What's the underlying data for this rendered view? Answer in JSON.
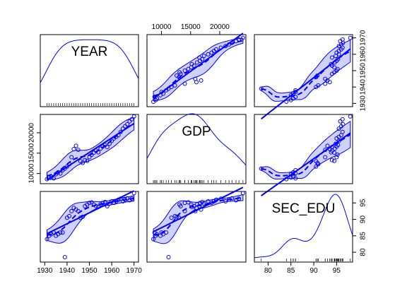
{
  "chart_data": {
    "type": "scatter",
    "variables": [
      "YEAR",
      "GDP",
      "SEC_EDU"
    ],
    "ranges": {
      "YEAR": [
        1928,
        1972
      ],
      "GDP": [
        7500,
        24500
      ],
      "SEC_EDU": [
        77,
        98.5
      ]
    },
    "ticks": {
      "YEAR": [
        1930,
        1940,
        1950,
        1960,
        1970
      ],
      "GDP": [
        10000,
        15000,
        20000
      ],
      "SEC_EDU": [
        80,
        85,
        90,
        95
      ]
    },
    "tick_labels": {
      "YEAR": [
        "1930",
        "1940",
        "1950",
        "1960",
        "1970"
      ],
      "GDP": [
        "10000",
        "15000",
        "20000"
      ],
      "SEC_EDU": [
        "80",
        "85",
        "90",
        "95"
      ]
    },
    "density_peak_scale": {
      "YEAR": 0.9,
      "GDP": 0.98,
      "SEC_EDU": 0.93
    },
    "records": [
      {
        "YEAR": 1931,
        "GDP": 8600,
        "SEC_EDU": 84.0
      },
      {
        "YEAR": 1932,
        "GDP": 9000,
        "SEC_EDU": 85.0
      },
      {
        "YEAR": 1933,
        "GDP": 9200,
        "SEC_EDU": 85.5
      },
      {
        "YEAR": 1934,
        "GDP": 8800,
        "SEC_EDU": 86.0
      },
      {
        "YEAR": 1935,
        "GDP": 9800,
        "SEC_EDU": 85.0
      },
      {
        "YEAR": 1936,
        "GDP": 10300,
        "SEC_EDU": 85.5
      },
      {
        "YEAR": 1937,
        "GDP": 10000,
        "SEC_EDU": 86.0
      },
      {
        "YEAR": 1938,
        "GDP": 10800,
        "SEC_EDU": 86.0
      },
      {
        "YEAR": 1939,
        "GDP": 11200,
        "SEC_EDU": 78.5
      },
      {
        "YEAR": 1940,
        "GDP": 11700,
        "SEC_EDU": 90.5
      },
      {
        "YEAR": 1941,
        "GDP": 12300,
        "SEC_EDU": 91.0
      },
      {
        "YEAR": 1942,
        "GDP": 14000,
        "SEC_EDU": 92.5
      },
      {
        "YEAR": 1943,
        "GDP": 16000,
        "SEC_EDU": 93.5
      },
      {
        "YEAR": 1944,
        "GDP": 16800,
        "SEC_EDU": 93.0
      },
      {
        "YEAR": 1945,
        "GDP": 15800,
        "SEC_EDU": 92.5
      },
      {
        "YEAR": 1946,
        "GDP": 13000,
        "SEC_EDU": 90.5
      },
      {
        "YEAR": 1947,
        "GDP": 12600,
        "SEC_EDU": 90.8
      },
      {
        "YEAR": 1948,
        "GDP": 13300,
        "SEC_EDU": 94.0
      },
      {
        "YEAR": 1949,
        "GDP": 13100,
        "SEC_EDU": 94.5
      },
      {
        "YEAR": 1950,
        "GDP": 14000,
        "SEC_EDU": 95.0
      },
      {
        "YEAR": 1951,
        "GDP": 14600,
        "SEC_EDU": 95.2
      },
      {
        "YEAR": 1952,
        "GDP": 15100,
        "SEC_EDU": 94.5
      },
      {
        "YEAR": 1953,
        "GDP": 15600,
        "SEC_EDU": 94.0
      },
      {
        "YEAR": 1954,
        "GDP": 15200,
        "SEC_EDU": 93.8
      },
      {
        "YEAR": 1955,
        "GDP": 16100,
        "SEC_EDU": 94.6
      },
      {
        "YEAR": 1956,
        "GDP": 16600,
        "SEC_EDU": 95.0
      },
      {
        "YEAR": 1957,
        "GDP": 17000,
        "SEC_EDU": 95.3
      },
      {
        "YEAR": 1958,
        "GDP": 16500,
        "SEC_EDU": 94.0
      },
      {
        "YEAR": 1959,
        "GDP": 17300,
        "SEC_EDU": 94.8
      },
      {
        "YEAR": 1960,
        "GDP": 18000,
        "SEC_EDU": 95.5
      },
      {
        "YEAR": 1961,
        "GDP": 18600,
        "SEC_EDU": 95.0
      },
      {
        "YEAR": 1962,
        "GDP": 19000,
        "SEC_EDU": 95.5
      },
      {
        "YEAR": 1963,
        "GDP": 19400,
        "SEC_EDU": 96.0
      },
      {
        "YEAR": 1964,
        "GDP": 20200,
        "SEC_EDU": 96.3
      },
      {
        "YEAR": 1965,
        "GDP": 21000,
        "SEC_EDU": 95.5
      },
      {
        "YEAR": 1966,
        "GDP": 21600,
        "SEC_EDU": 96.0
      },
      {
        "YEAR": 1967,
        "GDP": 22100,
        "SEC_EDU": 96.4
      },
      {
        "YEAR": 1968,
        "GDP": 22800,
        "SEC_EDU": 95.8
      },
      {
        "YEAR": 1969,
        "GDP": 23300,
        "SEC_EDU": 96.3
      },
      {
        "YEAR": 1970,
        "GDP": 24000,
        "SEC_EDU": 98.0
      }
    ],
    "colors": {
      "series": "#0000ff",
      "band_fill": "#0000ff",
      "axes": "#000000",
      "background": "#ffffff"
    },
    "grid": false,
    "legend": "none"
  }
}
